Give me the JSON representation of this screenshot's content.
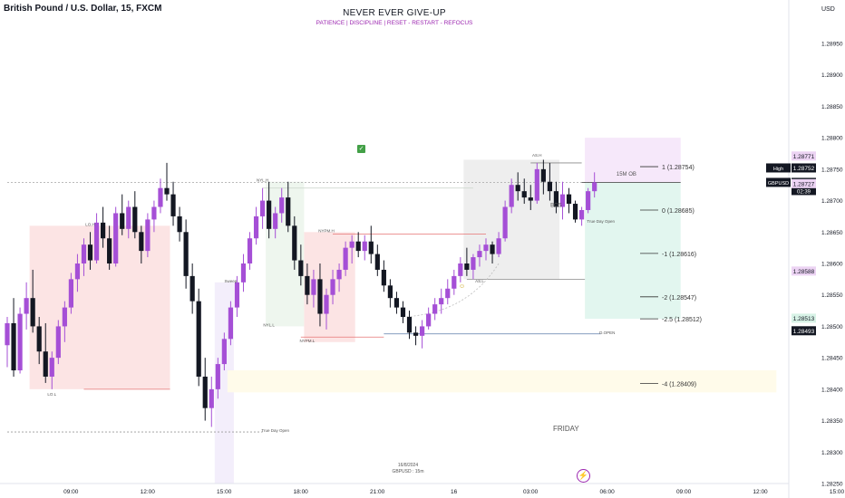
{
  "header": {
    "symbol_title": "British Pound / U.S. Dollar, 15, FXCM",
    "headline": "NEVER EVER GIVE-UP",
    "subline": "PATIENCE  |  DISCIPLINE  |  RESET - RESTART - REFOCUS",
    "currency": "USD"
  },
  "chart_data": {
    "type": "candlestick",
    "symbol": "GBPUSD",
    "ylim": [
      1.2825,
      1.2895
    ],
    "y_ticks": [
      "1.28950",
      "1.28900",
      "1.28850",
      "1.28800",
      "1.28750",
      "1.28700",
      "1.28650",
      "1.28600",
      "1.28550",
      "1.28500",
      "1.28450",
      "1.28400",
      "1.28350",
      "1.28300",
      "1.28250"
    ],
    "x_ticks": [
      {
        "label": "09:00",
        "i": 6
      },
      {
        "label": "12:00",
        "i": 18
      },
      {
        "label": "15:00",
        "i": 30
      },
      {
        "label": "18:00",
        "i": 42
      },
      {
        "label": "21:00",
        "i": 54
      },
      {
        "label": "16",
        "i": 66
      },
      {
        "label": "03:00",
        "i": 78
      },
      {
        "label": "06:00",
        "i": 90
      },
      {
        "label": "09:00",
        "i": 102
      },
      {
        "label": "12:00",
        "i": 114
      },
      {
        "label": "15:00",
        "i": 126
      }
    ],
    "candles": [
      [
        1.2847,
        1.28515,
        1.28435,
        1.28505
      ],
      [
        1.28505,
        1.28545,
        1.2842,
        1.2843
      ],
      [
        1.2843,
        1.2853,
        1.28425,
        1.2852
      ],
      [
        1.2852,
        1.2857,
        1.28495,
        1.28545
      ],
      [
        1.28545,
        1.2859,
        1.2849,
        1.285
      ],
      [
        1.285,
        1.28515,
        1.2844,
        1.2846
      ],
      [
        1.2846,
        1.28505,
        1.2841,
        1.2842
      ],
      [
        1.2842,
        1.2846,
        1.284,
        1.2845
      ],
      [
        1.2845,
        1.2851,
        1.2844,
        1.285
      ],
      [
        1.285,
        1.2854,
        1.28475,
        1.2853
      ],
      [
        1.2853,
        1.28585,
        1.2852,
        1.28575
      ],
      [
        1.28575,
        1.28615,
        1.28555,
        1.286
      ],
      [
        1.286,
        1.2864,
        1.2858,
        1.2863
      ],
      [
        1.2863,
        1.2865,
        1.2859,
        1.28605
      ],
      [
        1.28605,
        1.2868,
        1.286,
        1.28665
      ],
      [
        1.28665,
        1.2869,
        1.28625,
        1.2864
      ],
      [
        1.2864,
        1.2866,
        1.2859,
        1.286
      ],
      [
        1.286,
        1.2869,
        1.28595,
        1.2868
      ],
      [
        1.2868,
        1.2871,
        1.28645,
        1.28655
      ],
      [
        1.28655,
        1.287,
        1.2864,
        1.2869
      ],
      [
        1.2869,
        1.28715,
        1.2864,
        1.2865
      ],
      [
        1.2865,
        1.2866,
        1.286,
        1.2862
      ],
      [
        1.2862,
        1.2868,
        1.2861,
        1.2867
      ],
      [
        1.2867,
        1.287,
        1.2865,
        1.2869
      ],
      [
        1.2869,
        1.28735,
        1.2868,
        1.2872
      ],
      [
        1.2872,
        1.2876,
        1.287,
        1.2871
      ],
      [
        1.2871,
        1.2873,
        1.2866,
        1.28675
      ],
      [
        1.28675,
        1.2869,
        1.28635,
        1.2865
      ],
      [
        1.2865,
        1.2867,
        1.2856,
        1.2858
      ],
      [
        1.2858,
        1.286,
        1.2852,
        1.2854
      ],
      [
        1.2854,
        1.2856,
        1.28405,
        1.2842
      ],
      [
        1.2842,
        1.2845,
        1.2835,
        1.2837
      ],
      [
        1.2837,
        1.2842,
        1.2834,
        1.284
      ],
      [
        1.284,
        1.2845,
        1.28385,
        1.2844
      ],
      [
        1.2844,
        1.2849,
        1.2843,
        1.2848
      ],
      [
        1.2848,
        1.2854,
        1.2847,
        1.2853
      ],
      [
        1.2853,
        1.2858,
        1.28515,
        1.2857
      ],
      [
        1.2857,
        1.28615,
        1.28555,
        1.286
      ],
      [
        1.286,
        1.2865,
        1.2859,
        1.2864
      ],
      [
        1.2864,
        1.2869,
        1.2863,
        1.28675
      ],
      [
        1.28675,
        1.2872,
        1.28655,
        1.287
      ],
      [
        1.287,
        1.2873,
        1.2864,
        1.28655
      ],
      [
        1.28655,
        1.2869,
        1.2864,
        1.2868
      ],
      [
        1.2868,
        1.2872,
        1.28665,
        1.28705
      ],
      [
        1.28705,
        1.2873,
        1.2865,
        1.2866
      ],
      [
        1.2866,
        1.28675,
        1.2859,
        1.28605
      ],
      [
        1.28605,
        1.2863,
        1.28565,
        1.2858
      ],
      [
        1.2858,
        1.286,
        1.28535,
        1.2855
      ],
      [
        1.2855,
        1.2859,
        1.2853,
        1.28575
      ],
      [
        1.28575,
        1.286,
        1.285,
        1.2852
      ],
      [
        1.2852,
        1.2856,
        1.28495,
        1.2855
      ],
      [
        1.2855,
        1.2859,
        1.28535,
        1.28575
      ],
      [
        1.28575,
        1.286,
        1.28555,
        1.2859
      ],
      [
        1.2859,
        1.28635,
        1.2858,
        1.28625
      ],
      [
        1.28625,
        1.28645,
        1.286,
        1.28635
      ],
      [
        1.28635,
        1.2865,
        1.2861,
        1.2862
      ],
      [
        1.2862,
        1.28645,
        1.28605,
        1.28635
      ],
      [
        1.28635,
        1.2866,
        1.286,
        1.28615
      ],
      [
        1.28615,
        1.2863,
        1.2858,
        1.2859
      ],
      [
        1.2859,
        1.28605,
        1.28555,
        1.28565
      ],
      [
        1.28565,
        1.28575,
        1.2853,
        1.28545
      ],
      [
        1.28545,
        1.28555,
        1.2852,
        1.2853
      ],
      [
        1.2853,
        1.2854,
        1.28505,
        1.28515
      ],
      [
        1.28515,
        1.28525,
        1.2848,
        1.2849
      ],
      [
        1.2849,
        1.285,
        1.2847,
        1.28485
      ],
      [
        1.28485,
        1.2851,
        1.28465,
        1.285
      ],
      [
        1.285,
        1.2853,
        1.28495,
        1.2852
      ],
      [
        1.2852,
        1.28545,
        1.2851,
        1.28535
      ],
      [
        1.28535,
        1.2856,
        1.2852,
        1.28545
      ],
      [
        1.28545,
        1.28575,
        1.28535,
        1.2856
      ],
      [
        1.2856,
        1.2859,
        1.2855,
        1.2858
      ],
      [
        1.2858,
        1.2861,
        1.2857,
        1.286
      ],
      [
        1.286,
        1.28625,
        1.2858,
        1.2859
      ],
      [
        1.2859,
        1.28615,
        1.28575,
        1.2861
      ],
      [
        1.2861,
        1.2863,
        1.28595,
        1.2862
      ],
      [
        1.2862,
        1.2864,
        1.28605,
        1.2863
      ],
      [
        1.2863,
        1.28635,
        1.286,
        1.28615
      ],
      [
        1.28615,
        1.2865,
        1.2861,
        1.2864
      ],
      [
        1.2864,
        1.287,
        1.28635,
        1.2869
      ],
      [
        1.2869,
        1.28735,
        1.2868,
        1.28725
      ],
      [
        1.28725,
        1.28745,
        1.287,
        1.28715
      ],
      [
        1.28715,
        1.28735,
        1.28695,
        1.28705
      ],
      [
        1.28705,
        1.28725,
        1.28685,
        1.287
      ],
      [
        1.287,
        1.2876,
        1.28695,
        1.2875
      ],
      [
        1.2875,
        1.28765,
        1.2871,
        1.2873
      ],
      [
        1.2873,
        1.2876,
        1.287,
        1.28715
      ],
      [
        1.28715,
        1.2873,
        1.2868,
        1.2869
      ],
      [
        1.2869,
        1.2873,
        1.2867,
        1.2871
      ],
      [
        1.2871,
        1.2872,
        1.2868,
        1.28695
      ],
      [
        1.28695,
        1.287,
        1.28665,
        1.2867
      ],
      [
        1.2867,
        1.2869,
        1.2866,
        1.28685
      ],
      [
        1.28685,
        1.2872,
        1.2868,
        1.28715
      ],
      [
        1.28715,
        1.28745,
        1.28705,
        1.28729
      ]
    ],
    "y_labels": [
      {
        "value": 1.28771,
        "label": "1.28771",
        "style": "pink"
      },
      {
        "value": 1.28752,
        "label": "1.28752",
        "style": "dark",
        "tag": "High"
      },
      {
        "value": 1.28729,
        "label": "1.28729",
        "style": "dark",
        "tag": "GBPUSD",
        "extra": "02:39"
      },
      {
        "value": 1.28727,
        "label": "1.28727",
        "style": "pink"
      },
      {
        "value": 1.28588,
        "label": "1.28588",
        "style": "pink"
      },
      {
        "value": 1.28513,
        "label": "1.28513",
        "style": "green"
      },
      {
        "value": 1.28493,
        "label": "1.28493",
        "style": "dark"
      }
    ],
    "fib_levels": [
      {
        "label": "1 (1.28754)",
        "value": 1.28754
      },
      {
        "label": "0 (1.28685)",
        "value": 1.28685
      },
      {
        "label": "-1 (1.28616)",
        "value": 1.28616
      },
      {
        "label": "-2 (1.28547)",
        "value": 1.28547
      },
      {
        "label": "-2.5 (1.28512)",
        "value": 1.28512
      },
      {
        "label": "-4 (1.28409)",
        "value": 1.28409
      }
    ],
    "annotations": [
      {
        "text": "LO.H",
        "i": 13,
        "value": 1.2866
      },
      {
        "text": "LO.L",
        "i": 7,
        "value": 1.2839
      },
      {
        "text": "NYL.H",
        "i": 40,
        "value": 1.2873
      },
      {
        "text": "NYL.L",
        "i": 41,
        "value": 1.285
      },
      {
        "text": "NYPM.H",
        "i": 50,
        "value": 1.2865
      },
      {
        "text": "NYPM.L",
        "i": 47,
        "value": 1.28475
      },
      {
        "text": "AS.H",
        "i": 83,
        "value": 1.2877
      },
      {
        "text": "AS.L",
        "i": 74,
        "value": 1.2857
      },
      {
        "text": "BOS",
        "i": 86,
        "value": 1.2869
      },
      {
        "text": "15M OB",
        "i": 97,
        "value": 1.2874
      },
      {
        "text": "True Day Open",
        "i": 93,
        "value": 1.28665
      },
      {
        "text": "D.OPEN",
        "i": 94,
        "value": 1.28488
      },
      {
        "text": "True Day Open",
        "i": 42,
        "value": 1.28332
      },
      {
        "text": "Sweep",
        "i": 35,
        "value": 1.2857
      }
    ],
    "note_friday": "FRIDAY",
    "note_date": "16/8/2024",
    "note_pair": "GBPUSD : 15m"
  },
  "colors": {
    "bull": "#a54fd6",
    "bear": "#131722",
    "london_zone": "#fce4e4",
    "ny_zone": "#eef6ee",
    "asia_zone": "#eeeeee",
    "ob_zone": "#f6e8fa",
    "target_zone": "#e2f6ef",
    "fvg_zone": "#fffbea",
    "accent": "#9c27b0"
  }
}
